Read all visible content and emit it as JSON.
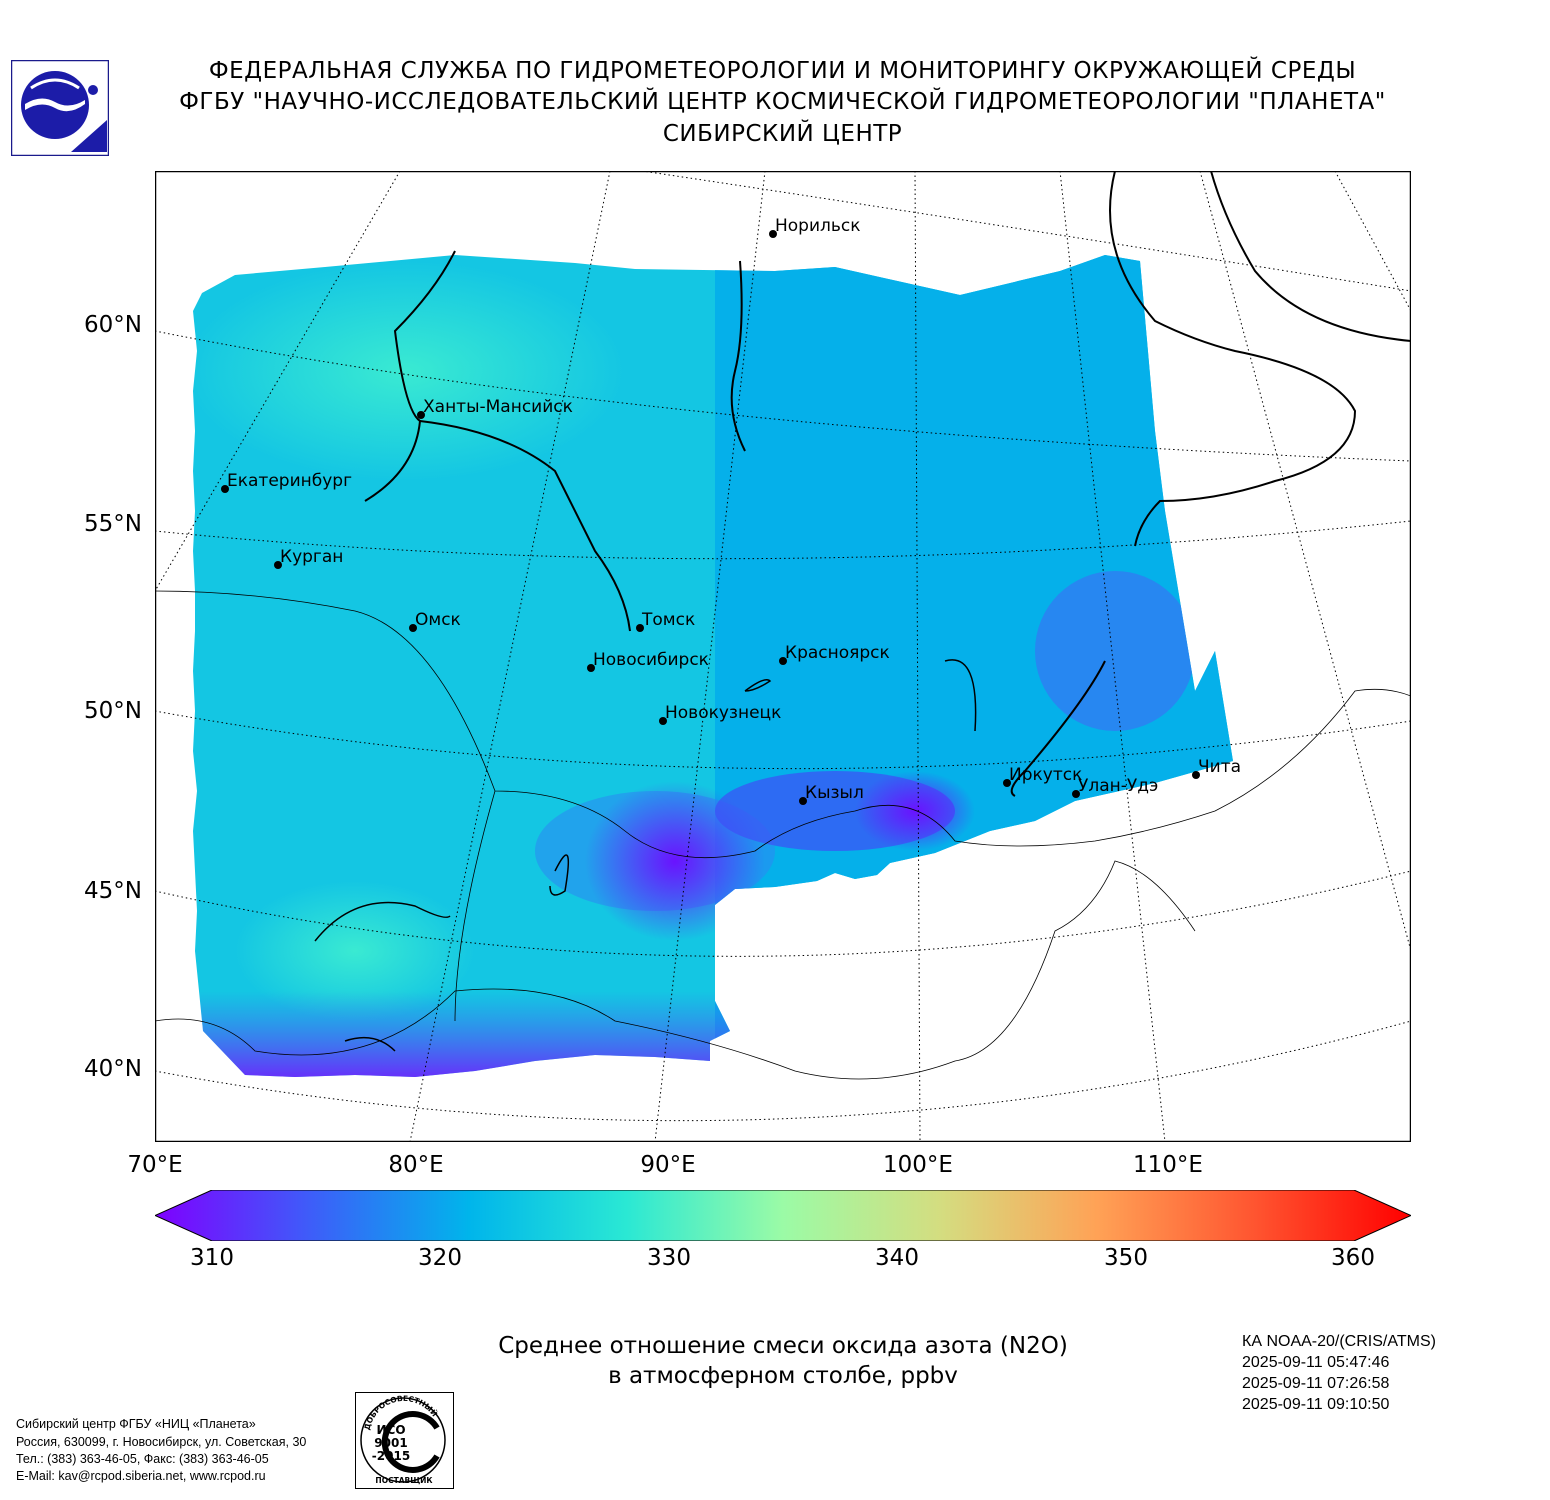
{
  "header": {
    "line1": "ФЕДЕРАЛЬНАЯ СЛУЖБА ПО ГИДРОМЕТЕОРОЛОГИИ И МОНИТОРИНГУ ОКРУЖАЮЩЕЙ СРЕДЫ",
    "line2": "ФГБУ \"НАУЧНО-ИССЛЕДОВАТЕЛЬСКИЙ ЦЕНТР КОСМИЧЕСКОЙ ГИДРОМЕТЕОРОЛОГИИ \"ПЛАНЕТА\"",
    "line3": "СИБИРСКИЙ ЦЕНТР"
  },
  "map": {
    "lat_labels": [
      "60°N",
      "55°N",
      "50°N",
      "45°N",
      "40°N"
    ],
    "lon_labels": [
      "70°E",
      "80°E",
      "90°E",
      "100°E",
      "110°E"
    ],
    "cities": [
      {
        "name": "Норильск"
      },
      {
        "name": "Ханты-Мансийск"
      },
      {
        "name": "Екатеринбург"
      },
      {
        "name": "Курган"
      },
      {
        "name": "Омск"
      },
      {
        "name": "Томск"
      },
      {
        "name": "Новосибирск"
      },
      {
        "name": "Красноярск"
      },
      {
        "name": "Новокузнецк"
      },
      {
        "name": "Кызыл"
      },
      {
        "name": "Иркутск"
      },
      {
        "name": "Улан-Удэ"
      },
      {
        "name": "Чита"
      }
    ]
  },
  "colorbar": {
    "min": 310,
    "max": 360,
    "ticks": [
      "310",
      "320",
      "330",
      "340",
      "350",
      "360"
    ],
    "colors": [
      "#7f00ff",
      "#3d5ef9",
      "#00b5eb",
      "#2ae8d4",
      "#9bfba6",
      "#d4dd80",
      "#ffa256",
      "#ff5530",
      "#ff0000"
    ]
  },
  "caption": {
    "line1": "Среднее отношение смеси оксида азота (N2O)",
    "line2": "в атмосферном столбе, ppbv"
  },
  "satellite": {
    "name": "КА NOAA-20/(CRIS/ATMS)",
    "times": [
      "2025-09-11 05:47:46",
      "2025-09-11 07:26:58",
      "2025-09-11 09:10:50"
    ]
  },
  "footer": {
    "line1": "Сибирский центр ФГБУ «НИЦ «Планета»",
    "line2": "Россия, 630099, г. Новосибирск, ул. Советская, 30",
    "line3": "Тел.: (383) 363-46-05, Факс: (383) 363-46-05",
    "line4": "E-Mail: kav@rcpod.siberia.net, www.rcpod.ru"
  },
  "iso": {
    "top": "ДОБРОСОВЕСТНЫЙ",
    "l1": "ИСО",
    "l2": "9001",
    "l3": "-2015",
    "bottom": "ПОСТАВЩИК"
  }
}
